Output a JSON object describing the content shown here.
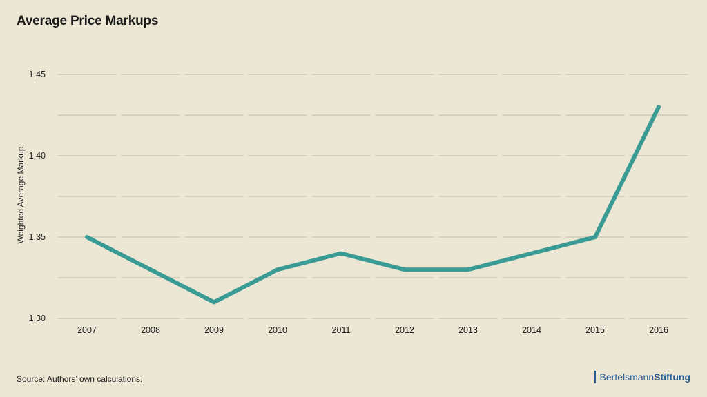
{
  "header": {
    "title": "Average Price Markups"
  },
  "footer": {
    "source": "Source: Authors’ own calculations.",
    "logo_part1": "Bertelsmann",
    "logo_part2": "Stiftung"
  },
  "colors": {
    "background": "#ece7d5",
    "line": "#3a9a94",
    "grid": "#bdb8a6",
    "brand": "#2a5a8f"
  },
  "chart_data": {
    "type": "line",
    "title": "Average Price Markups",
    "xlabel": "",
    "ylabel": "Weighted Average Markup",
    "categories": [
      "2007",
      "2008",
      "2009",
      "2010",
      "2011",
      "2012",
      "2013",
      "2014",
      "2015",
      "2016"
    ],
    "series": [
      {
        "values": [
          1.35,
          1.33,
          1.31,
          1.33,
          1.34,
          1.33,
          1.33,
          1.34,
          1.35,
          1.43
        ]
      }
    ],
    "ylim": [
      1.3,
      1.45
    ],
    "yticks": [
      "1,30",
      "1,35",
      "1,40",
      "1,45"
    ],
    "grid": true,
    "legend": "none"
  }
}
